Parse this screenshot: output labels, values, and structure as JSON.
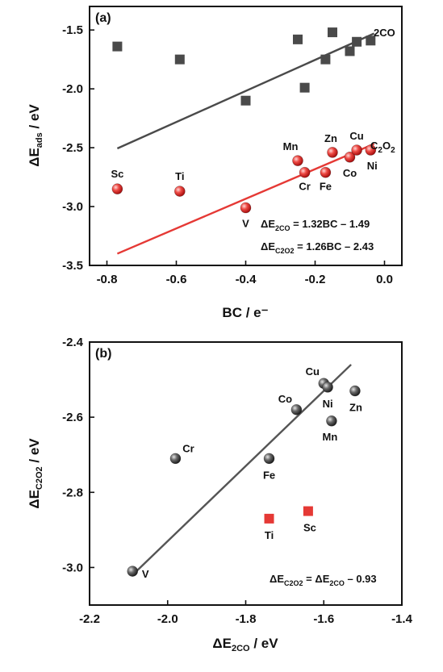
{
  "chart_data": [
    {
      "panel_label": "(a)",
      "type": "scatter",
      "xlabel": "BC / e⁻",
      "ylabel_main": "ΔE",
      "ylabel_sub": "ads",
      "ylabel_tail": " / eV",
      "xlim": [
        -0.85,
        0.05
      ],
      "ylim": [
        -3.5,
        -1.3
      ],
      "xticks": [
        -0.8,
        -0.6,
        -0.4,
        -0.2,
        0.0
      ],
      "xtick_labels": [
        "-0.8",
        "-0.6",
        "-0.4",
        "-0.2",
        "0.0"
      ],
      "yticks": [
        -3.5,
        -3.0,
        -2.5,
        -2.0,
        -1.5
      ],
      "ytick_labels": [
        "-3.5",
        "-3.0",
        "-2.5",
        "-2.0",
        "-1.5"
      ],
      "series": [
        {
          "name": "2CO",
          "marker": "square",
          "color": "#4a4a4a",
          "points": [
            {
              "x": -0.77,
              "y": -1.64
            },
            {
              "x": -0.59,
              "y": -1.75
            },
            {
              "x": -0.4,
              "y": -2.1
            },
            {
              "x": -0.25,
              "y": -1.58
            },
            {
              "x": -0.23,
              "y": -1.99
            },
            {
              "x": -0.17,
              "y": -1.75
            },
            {
              "x": -0.15,
              "y": -1.52
            },
            {
              "x": -0.1,
              "y": -1.68
            },
            {
              "x": -0.08,
              "y": -1.6
            },
            {
              "x": -0.04,
              "y": -1.59
            }
          ],
          "fit": {
            "slope": 1.32,
            "intercept": -1.49,
            "x_range": [
              -0.77,
              -0.03
            ],
            "color": "#4a4a4a"
          }
        },
        {
          "name": "C2O2",
          "marker": "sphere",
          "color": "#e53935",
          "points": [
            {
              "x": -0.77,
              "y": -2.85,
              "label": "Sc"
            },
            {
              "x": -0.59,
              "y": -2.87,
              "label": "Ti"
            },
            {
              "x": -0.4,
              "y": -3.01,
              "label": "V"
            },
            {
              "x": -0.25,
              "y": -2.61,
              "label": "Mn"
            },
            {
              "x": -0.23,
              "y": -2.71,
              "label": "Cr"
            },
            {
              "x": -0.17,
              "y": -2.71,
              "label": "Fe"
            },
            {
              "x": -0.15,
              "y": -2.54,
              "label": "Zn"
            },
            {
              "x": -0.1,
              "y": -2.58,
              "label": "Co"
            },
            {
              "x": -0.08,
              "y": -2.52,
              "label": "Cu"
            },
            {
              "x": -0.04,
              "y": -2.52,
              "label": "Ni"
            }
          ],
          "fit": {
            "slope": 1.26,
            "intercept": -2.43,
            "x_range": [
              -0.77,
              -0.03
            ],
            "color": "#e53935"
          }
        }
      ],
      "line_labels": [
        {
          "series": "2CO",
          "text": "2CO"
        },
        {
          "series": "C2O2",
          "main": "C",
          "sub1": "2",
          "mid": "O",
          "sub2": "2"
        }
      ],
      "equations": [
        {
          "lhs": "ΔE",
          "sub": "2CO",
          "rhs": " = 1.32BC – 1.49"
        },
        {
          "lhs": "ΔE",
          "sub": "C2O2",
          "rhs": " = 1.26BC – 2.43"
        }
      ]
    },
    {
      "panel_label": "(b)",
      "type": "scatter",
      "xlabel_main": "ΔE",
      "xlabel_sub": "2CO",
      "xlabel_tail": " / eV",
      "ylabel_main": "ΔE",
      "ylabel_sub": "C2O2",
      "ylabel_tail": " / eV",
      "xlim": [
        -2.2,
        -1.4
      ],
      "ylim": [
        -3.1,
        -2.4
      ],
      "xticks": [
        -2.2,
        -2.0,
        -1.8,
        -1.6,
        -1.4
      ],
      "xtick_labels": [
        "-2.2",
        "-2.0",
        "-1.8",
        "-1.6",
        "-1.4"
      ],
      "yticks": [
        -3.0,
        -2.8,
        -2.6,
        -2.4
      ],
      "ytick_labels": [
        "-3.0",
        "-2.8",
        "-2.6",
        "-2.4"
      ],
      "series": [
        {
          "marker": "sphere",
          "color": "#555555",
          "points": [
            {
              "x": -2.09,
              "y": -3.01,
              "label": "V"
            },
            {
              "x": -1.98,
              "y": -2.71,
              "label": "Cr"
            },
            {
              "x": -1.74,
              "y": -2.71,
              "label": "Fe"
            },
            {
              "x": -1.67,
              "y": -2.58,
              "label": "Co"
            },
            {
              "x": -1.6,
              "y": -2.51,
              "label": "Cu"
            },
            {
              "x": -1.59,
              "y": -2.52,
              "label": "Ni"
            },
            {
              "x": -1.58,
              "y": -2.61,
              "label": "Mn"
            },
            {
              "x": -1.52,
              "y": -2.53,
              "label": "Zn"
            }
          ],
          "fit": {
            "slope": 1.0,
            "intercept": -0.93,
            "x_range": [
              -2.09,
              -1.53
            ],
            "color": "#555555"
          }
        },
        {
          "marker": "square",
          "color": "#e53935",
          "points": [
            {
              "x": -1.74,
              "y": -2.87,
              "label": "Ti"
            },
            {
              "x": -1.64,
              "y": -2.85,
              "label": "Sc"
            }
          ]
        }
      ],
      "equations": [
        {
          "lhs": "ΔE",
          "sub": "C2O2",
          "mid": " = ΔE",
          "sub2": "2CO",
          "rhs": " – 0.93"
        }
      ]
    }
  ]
}
